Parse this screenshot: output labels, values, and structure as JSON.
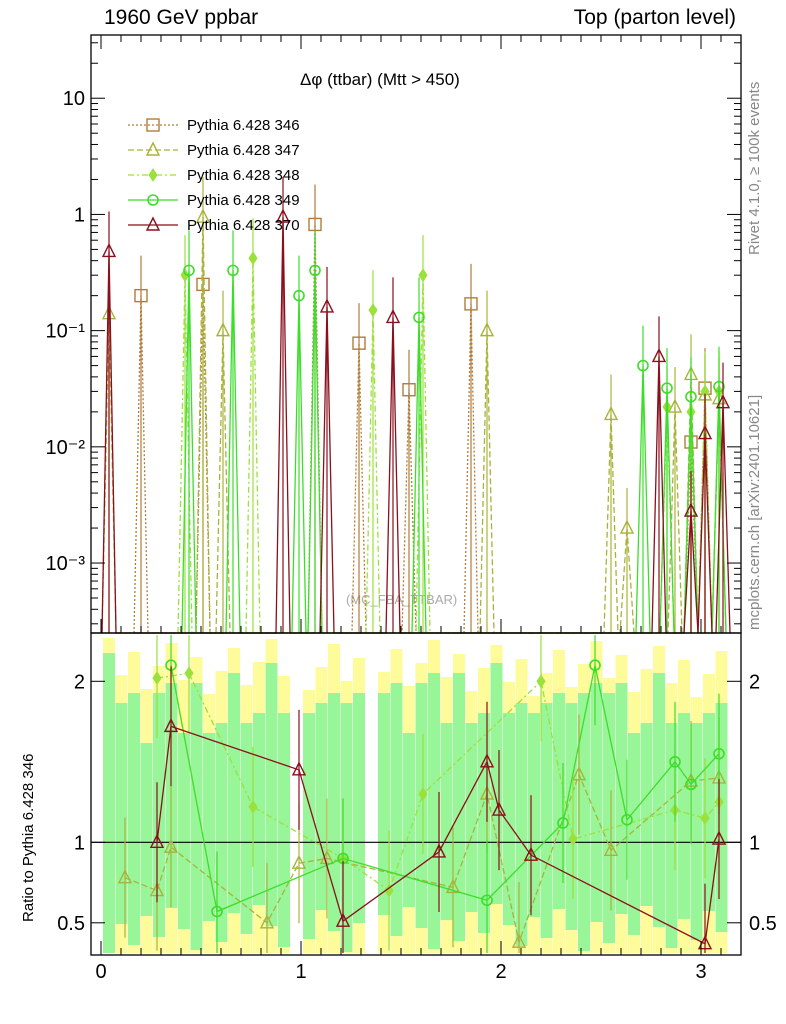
{
  "header": {
    "left": "1960 GeV ppbar",
    "right": "Top (parton level)"
  },
  "plot_title": "Δφ (ttbar) (Mtt > 450)",
  "side_labels": {
    "rivet": "Rivet 4.1.0, ≥ 100k events",
    "mcplots": "mcplots.cern.ch [arXiv:2401.10621]"
  },
  "watermark": "(MC_FBA_TTBAR)",
  "ratio_ylabel": "Ratio to Pythia 6.428 346",
  "colors": {
    "p346": "#b07c3a",
    "p347": "#a9b33a",
    "p348": "#9be03c",
    "p349": "#3dde2a",
    "p370": "#8b0f1c",
    "band_green": "#98f598",
    "band_yellow": "#fdfb9a"
  },
  "chart_data": [
    {
      "type": "line",
      "panel": "main",
      "yscale": "log",
      "xlim": [
        -0.05,
        3.2
      ],
      "ylim": [
        0.00025,
        35
      ],
      "yticks": [
        {
          "value": 10,
          "label": "10"
        },
        {
          "value": 1,
          "label": "1"
        },
        {
          "value": 0.1,
          "label": "10⁻¹"
        },
        {
          "value": 0.01,
          "label": "10⁻²"
        },
        {
          "value": 0.001,
          "label": "10⁻³"
        }
      ],
      "legend": [
        "Pythia 6.428 346",
        "Pythia 6.428 347",
        "Pythia 6.428 348",
        "Pythia 6.428 349",
        "Pythia 6.428 370"
      ],
      "legend_position": "top-left",
      "series": [
        {
          "name": "Pythia 6.428 346",
          "style": "square",
          "x": [
            0.2,
            0.51,
            1.07,
            1.29,
            1.54,
            1.85,
            2.95,
            3.02
          ],
          "y": [
            0.2,
            0.25,
            0.82,
            0.078,
            0.031,
            0.17,
            0.011,
            0.032
          ]
        },
        {
          "name": "Pythia 6.428 347",
          "style": "triangle",
          "x": [
            0.04,
            0.51,
            0.61,
            1.93,
            2.55,
            2.63,
            2.87,
            2.95,
            3.02,
            3.09
          ],
          "y": [
            0.14,
            0.95,
            0.1,
            0.1,
            0.019,
            0.002,
            0.022,
            0.042,
            0.028,
            0.026
          ]
        },
        {
          "name": "Pythia 6.428 348",
          "style": "diamond",
          "x": [
            0.42,
            0.76,
            1.36,
            1.61,
            2.83,
            2.95,
            3.02,
            3.09
          ],
          "y": [
            0.3,
            0.42,
            0.15,
            0.3,
            0.022,
            0.02,
            0.03,
            0.03
          ]
        },
        {
          "name": "Pythia 6.428 349",
          "style": "circle",
          "x": [
            0.44,
            0.66,
            0.99,
            1.07,
            1.59,
            2.71,
            2.83,
            2.95,
            3.09
          ],
          "y": [
            0.33,
            0.33,
            0.2,
            0.33,
            0.13,
            0.05,
            0.032,
            0.027,
            0.033
          ]
        },
        {
          "name": "Pythia 6.428 370",
          "style": "triangle",
          "x": [
            0.04,
            0.91,
            1.13,
            1.46,
            2.79,
            2.95,
            3.02,
            3.11
          ],
          "y": [
            0.48,
            0.95,
            0.16,
            0.13,
            0.06,
            0.0028,
            0.013,
            0.024
          ]
        }
      ]
    },
    {
      "type": "line",
      "panel": "ratio",
      "ylim": [
        0.3,
        2.3
      ],
      "xlim": [
        -0.05,
        3.2
      ],
      "yticks": [
        {
          "value": 0.5,
          "label": "0.5"
        },
        {
          "value": 1,
          "label": "1"
        },
        {
          "value": 2,
          "label": "2"
        }
      ],
      "xticks": [
        {
          "value": 0,
          "label": "0"
        },
        {
          "value": 1,
          "label": "1"
        },
        {
          "value": 2,
          "label": "2"
        },
        {
          "value": 3,
          "label": "3"
        }
      ],
      "reference_line": 1,
      "series": [
        {
          "name": "Pythia 6.428 347",
          "x": [
            0.12,
            0.28,
            0.35,
            0.83,
            0.99,
            1.13,
            1.76,
            1.93,
            2.09,
            2.39,
            2.55,
            2.95,
            3.09
          ],
          "y": [
            0.78,
            0.7,
            0.97,
            0.5,
            0.87,
            0.9,
            0.72,
            1.3,
            0.38,
            1.42,
            0.95,
            1.38,
            1.4
          ]
        },
        {
          "name": "Pythia 6.428 348",
          "x": [
            0.28,
            0.44,
            0.76,
            1.21,
            1.44,
            1.61,
            2.2,
            2.36,
            2.87,
            3.02,
            3.09
          ],
          "y": [
            2.02,
            2.05,
            1.22,
            0.9,
            0.7,
            1.3,
            2.0,
            1.02,
            1.2,
            1.15,
            1.25
          ]
        },
        {
          "name": "Pythia 6.428 349",
          "x": [
            0.35,
            0.58,
            1.21,
            1.93,
            2.31,
            2.47,
            2.63,
            2.87,
            2.95,
            3.09
          ],
          "y": [
            2.1,
            0.57,
            0.9,
            0.64,
            1.12,
            2.1,
            1.14,
            1.5,
            1.36,
            1.55
          ]
        },
        {
          "name": "Pythia 6.428 370",
          "x": [
            0.28,
            0.35,
            0.99,
            1.21,
            1.69,
            1.93,
            1.99,
            2.15,
            3.02,
            3.09
          ],
          "y": [
            1.0,
            1.72,
            1.45,
            0.51,
            0.94,
            1.5,
            1.2,
            0.92,
            0.37,
            1.02
          ]
        }
      ]
    }
  ]
}
